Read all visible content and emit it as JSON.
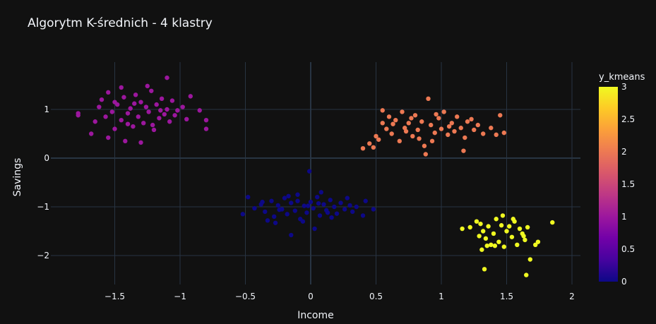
{
  "chart_data": {
    "type": "scatter",
    "title": "Algorytm K-średnich - 4 klastry",
    "xlabel": "Income",
    "ylabel": "Savings",
    "xlim": [
      -1.87,
      2.07
    ],
    "ylim": [
      -2.52,
      1.88
    ],
    "x_ticks": [
      -1.5,
      -1,
      -0.5,
      0,
      0.5,
      1,
      1.5,
      2
    ],
    "x_tick_labels": [
      "−1.5",
      "−1",
      "−0.5",
      "0",
      "0.5",
      "1",
      "1.5",
      "2"
    ],
    "y_ticks": [
      1,
      0,
      -1,
      -2
    ],
    "y_tick_labels": [
      "1",
      "0",
      "−1",
      "−2"
    ],
    "grid": true,
    "colorbar": {
      "title": "y_kmeans",
      "range": [
        0,
        3
      ],
      "ticks": [
        3,
        2.5,
        2,
        1.5,
        1,
        0.5,
        0
      ],
      "tick_labels": [
        "3",
        "2.5",
        "2",
        "1.5",
        "1",
        "0.5",
        "0"
      ],
      "colors": [
        "#0d0887",
        "#46039f",
        "#7201a8",
        "#9c179e",
        "#bd3786",
        "#d8576b",
        "#ed7953",
        "#fb9f3a",
        "#fdca26",
        "#f0f921"
      ]
    },
    "clusters": [
      {
        "label": 0,
        "color": "#0d0887",
        "points": [
          [
            -0.43,
            -1.03
          ],
          [
            -0.38,
            -0.95
          ],
          [
            -0.35,
            -1.1
          ],
          [
            -0.3,
            -0.88
          ],
          [
            -0.28,
            -1.2
          ],
          [
            -0.25,
            -0.97
          ],
          [
            -0.22,
            -1.05
          ],
          [
            -0.2,
            -0.82
          ],
          [
            -0.18,
            -1.15
          ],
          [
            -0.15,
            -0.92
          ],
          [
            -0.12,
            -1.08
          ],
          [
            -0.1,
            -0.75
          ],
          [
            -0.08,
            -1.25
          ],
          [
            -0.05,
            -0.98
          ],
          [
            -0.03,
            -1.12
          ],
          [
            0.0,
            -0.9
          ],
          [
            0.02,
            -1.03
          ],
          [
            0.05,
            -0.8
          ],
          [
            0.07,
            -1.18
          ],
          [
            0.1,
            -0.95
          ],
          [
            0.12,
            -1.07
          ],
          [
            0.15,
            -0.86
          ],
          [
            0.18,
            -1.0
          ],
          [
            0.2,
            -1.14
          ],
          [
            0.23,
            -0.92
          ],
          [
            0.26,
            -1.05
          ],
          [
            0.3,
            -0.97
          ],
          [
            0.35,
            -1.0
          ],
          [
            0.42,
            -0.88
          ],
          [
            0.48,
            -1.05
          ],
          [
            -0.52,
            -1.15
          ],
          [
            -0.48,
            -0.8
          ],
          [
            -0.33,
            -1.28
          ],
          [
            -0.17,
            -0.78
          ],
          [
            -0.06,
            -1.3
          ],
          [
            0.08,
            -0.7
          ],
          [
            0.16,
            -1.22
          ],
          [
            0.28,
            -0.82
          ],
          [
            -0.01,
            -0.27
          ],
          [
            -0.15,
            -1.58
          ],
          [
            0.03,
            -1.45
          ],
          [
            -0.27,
            -1.33
          ],
          [
            0.4,
            -1.18
          ],
          [
            -0.1,
            -0.88
          ],
          [
            0.06,
            -0.93
          ],
          [
            -0.24,
            -1.06
          ],
          [
            0.13,
            -1.12
          ],
          [
            -0.02,
            -0.98
          ],
          [
            0.32,
            -1.1
          ],
          [
            -0.37,
            -0.9
          ]
        ]
      },
      {
        "label": 1,
        "color": "#9c179e",
        "points": [
          [
            -1.78,
            0.92
          ],
          [
            -1.78,
            0.88
          ],
          [
            -1.68,
            0.5
          ],
          [
            -1.65,
            0.75
          ],
          [
            -1.62,
            1.05
          ],
          [
            -1.6,
            1.2
          ],
          [
            -1.57,
            0.85
          ],
          [
            -1.55,
            1.35
          ],
          [
            -1.52,
            0.95
          ],
          [
            -1.5,
            0.6
          ],
          [
            -1.48,
            1.1
          ],
          [
            -1.45,
            0.78
          ],
          [
            -1.43,
            1.25
          ],
          [
            -1.4,
            0.92
          ],
          [
            -1.38,
            1.02
          ],
          [
            -1.36,
            0.65
          ],
          [
            -1.34,
            1.3
          ],
          [
            -1.32,
            0.85
          ],
          [
            -1.3,
            1.15
          ],
          [
            -1.28,
            0.72
          ],
          [
            -1.26,
            1.05
          ],
          [
            -1.24,
            0.95
          ],
          [
            -1.22,
            1.38
          ],
          [
            -1.2,
            0.58
          ],
          [
            -1.18,
            1.1
          ],
          [
            -1.16,
            0.82
          ],
          [
            -1.14,
            1.22
          ],
          [
            -1.12,
            0.9
          ],
          [
            -1.1,
            1.0
          ],
          [
            -1.08,
            0.75
          ],
          [
            -1.06,
            1.18
          ],
          [
            -1.04,
            0.88
          ],
          [
            -1.02,
            0.98
          ],
          [
            -0.98,
            1.05
          ],
          [
            -0.95,
            0.8
          ],
          [
            -0.92,
            1.27
          ],
          [
            -0.85,
            0.98
          ],
          [
            -0.8,
            0.78
          ],
          [
            -0.8,
            0.6
          ],
          [
            -1.1,
            1.65
          ],
          [
            -1.25,
            1.48
          ],
          [
            -1.42,
            0.35
          ],
          [
            -1.3,
            0.32
          ],
          [
            -1.55,
            0.42
          ],
          [
            -1.45,
            1.45
          ],
          [
            -1.35,
            1.12
          ],
          [
            -1.21,
            0.68
          ],
          [
            -1.15,
            0.98
          ],
          [
            -1.5,
            1.15
          ],
          [
            -1.4,
            0.7
          ]
        ]
      },
      {
        "label": 2,
        "color": "#ed7953",
        "points": [
          [
            0.4,
            0.2
          ],
          [
            0.45,
            0.3
          ],
          [
            0.48,
            0.22
          ],
          [
            0.5,
            0.45
          ],
          [
            0.52,
            0.38
          ],
          [
            0.55,
            0.72
          ],
          [
            0.55,
            0.98
          ],
          [
            0.58,
            0.6
          ],
          [
            0.6,
            0.85
          ],
          [
            0.62,
            0.5
          ],
          [
            0.65,
            0.78
          ],
          [
            0.68,
            0.35
          ],
          [
            0.7,
            0.95
          ],
          [
            0.72,
            0.62
          ],
          [
            0.75,
            0.72
          ],
          [
            0.78,
            0.45
          ],
          [
            0.8,
            0.88
          ],
          [
            0.82,
            0.58
          ],
          [
            0.85,
            0.75
          ],
          [
            0.87,
            0.25
          ],
          [
            0.9,
            1.22
          ],
          [
            0.92,
            0.68
          ],
          [
            0.95,
            0.52
          ],
          [
            0.98,
            0.82
          ],
          [
            1.0,
            0.6
          ],
          [
            1.02,
            0.95
          ],
          [
            1.05,
            0.48
          ],
          [
            1.08,
            0.72
          ],
          [
            1.1,
            0.55
          ],
          [
            1.12,
            0.85
          ],
          [
            1.15,
            0.62
          ],
          [
            1.18,
            0.42
          ],
          [
            1.2,
            0.75
          ],
          [
            1.25,
            0.58
          ],
          [
            1.28,
            0.68
          ],
          [
            1.32,
            0.5
          ],
          [
            1.38,
            0.62
          ],
          [
            1.42,
            0.48
          ],
          [
            1.45,
            0.88
          ],
          [
            1.48,
            0.52
          ],
          [
            0.88,
            0.08
          ],
          [
            1.17,
            0.15
          ],
          [
            0.63,
            0.7
          ],
          [
            0.77,
            0.82
          ],
          [
            0.83,
            0.4
          ],
          [
            0.96,
            0.9
          ],
          [
            1.06,
            0.65
          ],
          [
            0.73,
            0.55
          ],
          [
            1.23,
            0.8
          ],
          [
            0.93,
            0.35
          ]
        ]
      },
      {
        "label": 3,
        "color": "#f0f921",
        "points": [
          [
            1.16,
            -1.45
          ],
          [
            1.22,
            -1.42
          ],
          [
            1.27,
            -1.3
          ],
          [
            1.29,
            -1.6
          ],
          [
            1.31,
            -1.88
          ],
          [
            1.32,
            -1.5
          ],
          [
            1.34,
            -1.65
          ],
          [
            1.35,
            -1.8
          ],
          [
            1.36,
            -1.4
          ],
          [
            1.38,
            -1.78
          ],
          [
            1.4,
            -1.55
          ],
          [
            1.42,
            -1.25
          ],
          [
            1.44,
            -1.72
          ],
          [
            1.46,
            -1.38
          ],
          [
            1.48,
            -1.82
          ],
          [
            1.5,
            -1.5
          ],
          [
            1.52,
            -1.4
          ],
          [
            1.54,
            -1.62
          ],
          [
            1.56,
            -1.3
          ],
          [
            1.58,
            -1.78
          ],
          [
            1.6,
            -1.45
          ],
          [
            1.62,
            -1.55
          ],
          [
            1.64,
            -1.68
          ],
          [
            1.66,
            -1.42
          ],
          [
            1.68,
            -2.08
          ],
          [
            1.72,
            -1.78
          ],
          [
            1.74,
            -1.72
          ],
          [
            1.85,
            -1.32
          ],
          [
            1.33,
            -2.28
          ],
          [
            1.65,
            -2.4
          ],
          [
            1.47,
            -1.18
          ],
          [
            1.3,
            -1.35
          ],
          [
            1.55,
            -1.25
          ],
          [
            1.41,
            -1.8
          ],
          [
            1.63,
            -1.6
          ]
        ]
      }
    ]
  }
}
